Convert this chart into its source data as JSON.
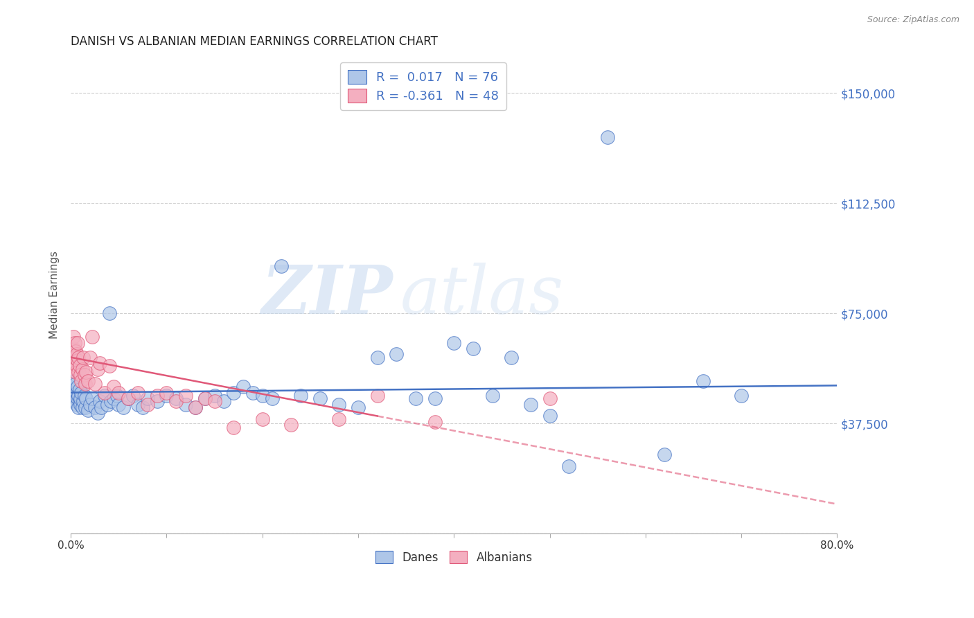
{
  "title": "DANISH VS ALBANIAN MEDIAN EARNINGS CORRELATION CHART",
  "source": "Source: ZipAtlas.com",
  "ylabel": "Median Earnings",
  "yticks": [
    0,
    37500,
    75000,
    112500,
    150000
  ],
  "ytick_labels": [
    "",
    "$37,500",
    "$75,000",
    "$112,500",
    "$150,000"
  ],
  "xlim": [
    0.0,
    0.8
  ],
  "ylim": [
    0,
    162500
  ],
  "legend_danes_R": "0.017",
  "legend_danes_N": "76",
  "legend_albanians_R": "-0.361",
  "legend_albanians_N": "48",
  "danes_color": "#aec6e8",
  "albanians_color": "#f4afc0",
  "danes_line_color": "#4472c4",
  "albanians_line_color": "#e05878",
  "danes_scatter_x": [
    0.002,
    0.003,
    0.003,
    0.004,
    0.004,
    0.005,
    0.005,
    0.006,
    0.006,
    0.007,
    0.007,
    0.008,
    0.008,
    0.009,
    0.009,
    0.01,
    0.01,
    0.011,
    0.012,
    0.013,
    0.014,
    0.015,
    0.016,
    0.018,
    0.02,
    0.022,
    0.025,
    0.028,
    0.03,
    0.032,
    0.035,
    0.038,
    0.04,
    0.042,
    0.045,
    0.048,
    0.05,
    0.055,
    0.06,
    0.065,
    0.07,
    0.075,
    0.08,
    0.09,
    0.1,
    0.11,
    0.12,
    0.13,
    0.14,
    0.15,
    0.16,
    0.17,
    0.18,
    0.19,
    0.2,
    0.21,
    0.22,
    0.24,
    0.26,
    0.28,
    0.3,
    0.32,
    0.34,
    0.36,
    0.38,
    0.4,
    0.42,
    0.44,
    0.46,
    0.48,
    0.5,
    0.52,
    0.56,
    0.62,
    0.66,
    0.7
  ],
  "danes_scatter_y": [
    50000,
    48000,
    52000,
    47000,
    49000,
    45000,
    51000,
    44000,
    48000,
    46000,
    50000,
    43000,
    47000,
    45000,
    49000,
    44000,
    46000,
    48000,
    43000,
    45000,
    47000,
    43000,
    46000,
    42000,
    44000,
    46000,
    43000,
    41000,
    45000,
    43000,
    47000,
    44000,
    75000,
    45000,
    46000,
    47000,
    44000,
    43000,
    46000,
    47000,
    44000,
    43000,
    46000,
    45000,
    47000,
    46000,
    44000,
    43000,
    46000,
    47000,
    45000,
    48000,
    50000,
    48000,
    47000,
    46000,
    91000,
    47000,
    46000,
    44000,
    43000,
    60000,
    61000,
    46000,
    46000,
    65000,
    63000,
    47000,
    60000,
    44000,
    40000,
    23000,
    135000,
    27000,
    52000,
    47000
  ],
  "albanians_scatter_x": [
    0.002,
    0.003,
    0.003,
    0.004,
    0.004,
    0.005,
    0.005,
    0.006,
    0.006,
    0.007,
    0.007,
    0.008,
    0.008,
    0.009,
    0.01,
    0.011,
    0.012,
    0.013,
    0.014,
    0.015,
    0.016,
    0.018,
    0.02,
    0.022,
    0.025,
    0.028,
    0.03,
    0.035,
    0.04,
    0.045,
    0.05,
    0.06,
    0.07,
    0.08,
    0.09,
    0.1,
    0.11,
    0.12,
    0.13,
    0.14,
    0.15,
    0.17,
    0.2,
    0.23,
    0.28,
    0.32,
    0.38,
    0.5
  ],
  "albanians_scatter_y": [
    58000,
    63000,
    67000,
    60000,
    65000,
    55000,
    62000,
    57000,
    61000,
    59000,
    65000,
    55000,
    60000,
    57000,
    54000,
    52000,
    56000,
    60000,
    54000,
    51000,
    55000,
    52000,
    60000,
    67000,
    51000,
    56000,
    58000,
    48000,
    57000,
    50000,
    48000,
    46000,
    48000,
    44000,
    47000,
    48000,
    45000,
    47000,
    43000,
    46000,
    45000,
    36000,
    39000,
    37000,
    39000,
    47000,
    38000,
    46000
  ],
  "watermark_zip": "ZIP",
  "watermark_atlas": "atlas",
  "background_color": "#ffffff",
  "grid_color": "#d0d0d0",
  "danes_trend_intercept": 48000,
  "danes_trend_slope": 3000,
  "albanians_trend_x0": 0.0,
  "albanians_trend_y0": 60000,
  "albanians_trend_x1": 0.8,
  "albanians_trend_y1": 10000
}
